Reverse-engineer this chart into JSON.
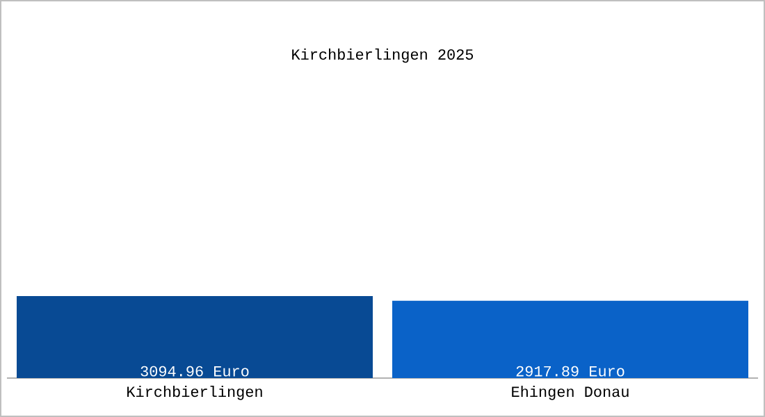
{
  "chart_data": {
    "type": "bar",
    "title": "Kirchbierlingen 2025",
    "categories": [
      "Kirchbierlingen",
      "Ehingen Donau"
    ],
    "values": [
      3094.96,
      2917.89
    ],
    "colors": [
      "#084a94",
      "#0a62c8"
    ],
    "value_labels": [
      "3094.96 Euro",
      "2917.89 Euro"
    ]
  }
}
